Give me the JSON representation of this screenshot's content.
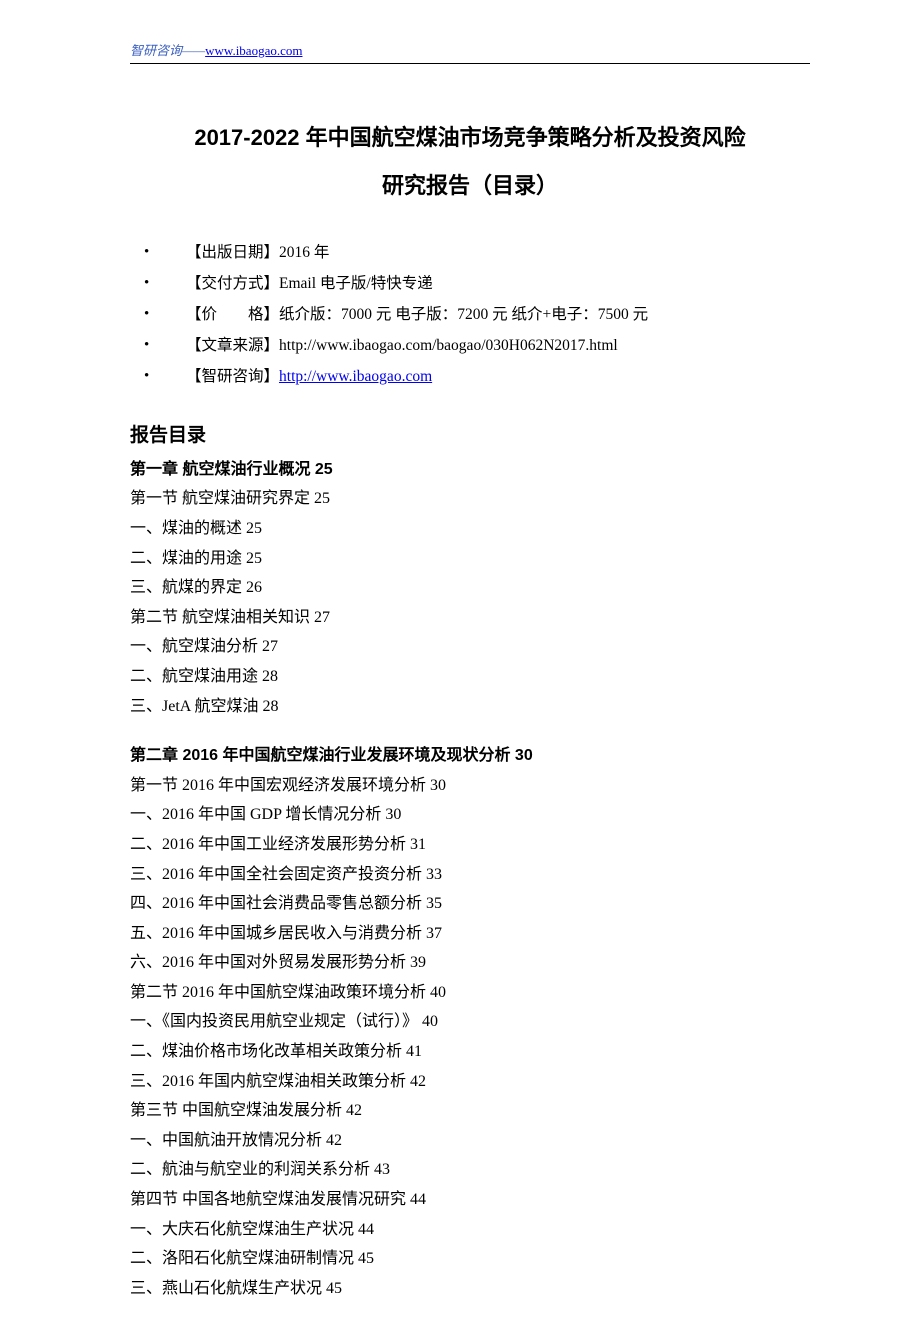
{
  "header": {
    "prefix": "智研咨询——",
    "link_text": "www.ibaogao.com"
  },
  "title_line1": "2017-2022 年中国航空煤油市场竞争策略分析及投资风险",
  "title_line2": "研究报告（目录）",
  "meta": {
    "items": [
      {
        "label": "【出版日期】",
        "value": "2016 年"
      },
      {
        "label": "【交付方式】",
        "value": "Email 电子版/特快专递"
      },
      {
        "label": "【价　　格】",
        "value": "纸介版：7000 元  电子版：7200 元  纸介+电子：7500 元"
      },
      {
        "label": "【文章来源】",
        "value": "http://www.ibaogao.com/baogao/030H062N2017.html"
      }
    ],
    "link_label": "【智研咨询】",
    "link_value": "http://www.ibaogao.com"
  },
  "toc_header": "报告目录",
  "chapters": [
    {
      "title": "第一章 航空煤油行业概况  25",
      "lines": [
        "第一节 航空煤油研究界定  25",
        "一、煤油的概述  25",
        "二、煤油的用途  25",
        "三、航煤的界定  26",
        "第二节  航空煤油相关知识  27",
        "一、航空煤油分析  27",
        "二、航空煤油用途  28",
        "三、JetA 航空煤油  28"
      ]
    },
    {
      "title": "第二章  2016 年中国航空煤油行业发展环境及现状分析  30",
      "lines": [
        "第一节  2016 年中国宏观经济发展环境分析  30",
        "一、2016 年中国 GDP 增长情况分析  30",
        "二、2016 年中国工业经济发展形势分析  31",
        "三、2016 年中国全社会固定资产投资分析  33",
        "四、2016 年中国社会消费品零售总额分析  35",
        "五、2016 年中国城乡居民收入与消费分析  37",
        "六、2016 年中国对外贸易发展形势分析  39",
        "第二节  2016 年中国航空煤油政策环境分析  40",
        "一、《国内投资民用航空业规定（试行）》  40",
        "二、煤油价格市场化改革相关政策分析  41",
        "三、2016 年国内航空煤油相关政策分析  42",
        "第三节  中国航空煤油发展分析  42",
        "一、中国航油开放情况分析  42",
        "二、航油与航空业的利润关系分析  43",
        "第四节  中国各地航空煤油发展情况研究  44",
        "一、大庆石化航空煤油生产状况  44",
        "二、洛阳石化航空煤油研制情况  45",
        "三、燕山石化航煤生产状况  45"
      ]
    }
  ]
}
